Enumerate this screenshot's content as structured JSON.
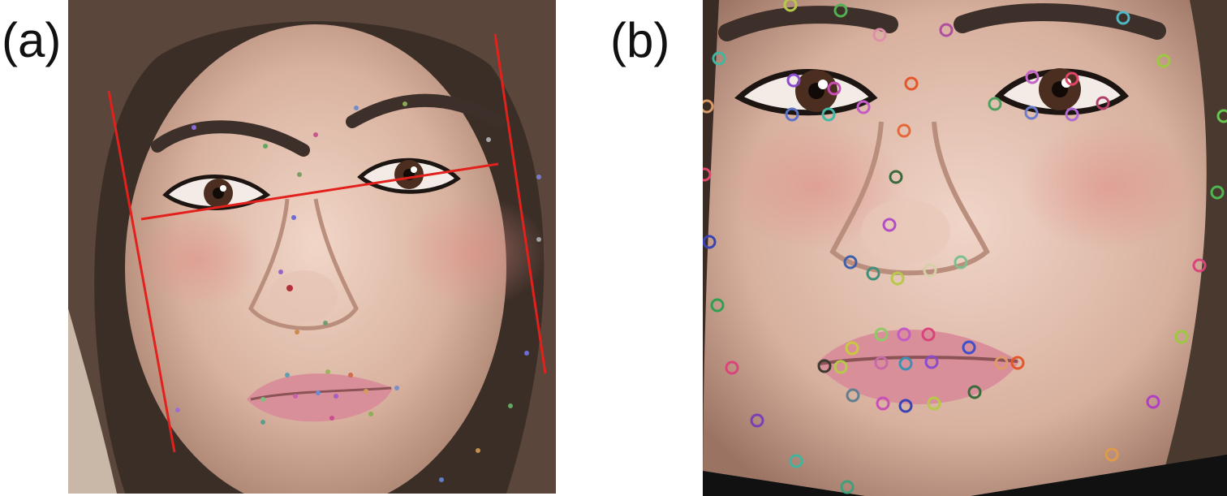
{
  "panels": [
    {
      "label": "(a)"
    },
    {
      "label": "(b)"
    }
  ],
  "colors": {
    "skin": "#d9b29f",
    "hair": "#4a3a30",
    "guide_line": "#e3211c",
    "lips": "#d98f9a",
    "iris": "#4b2e1f"
  }
}
